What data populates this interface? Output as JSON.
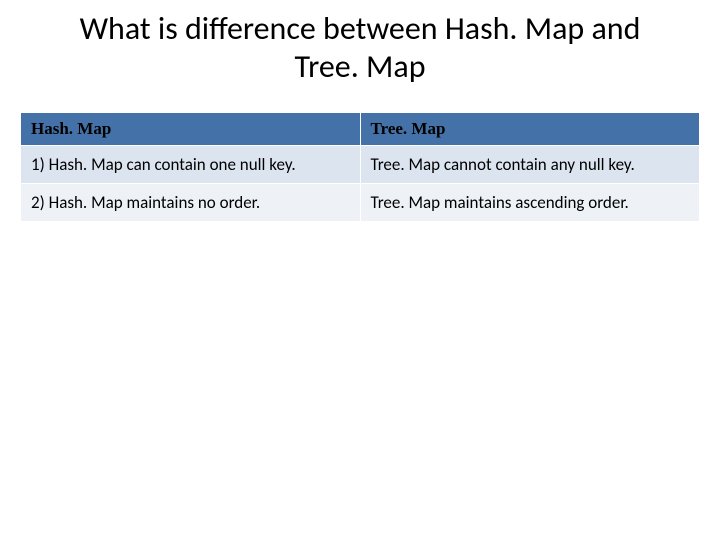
{
  "title": "What is difference between Hash. Map and Tree. Map",
  "table": {
    "columns": [
      "Hash. Map",
      "Tree. Map"
    ],
    "rows": [
      [
        "1) Hash. Map can contain one null key.",
        "Tree. Map cannot contain any null key."
      ],
      [
        "2) Hash. Map maintains no order.",
        "Tree. Map maintains ascending order."
      ]
    ],
    "header_bg": "#4472a8",
    "row_alt_bg": "#dce5ef",
    "row_norm_bg": "#eef2f7",
    "title_fontsize": 32,
    "header_fontsize": 17,
    "cell_fontsize": 17
  }
}
